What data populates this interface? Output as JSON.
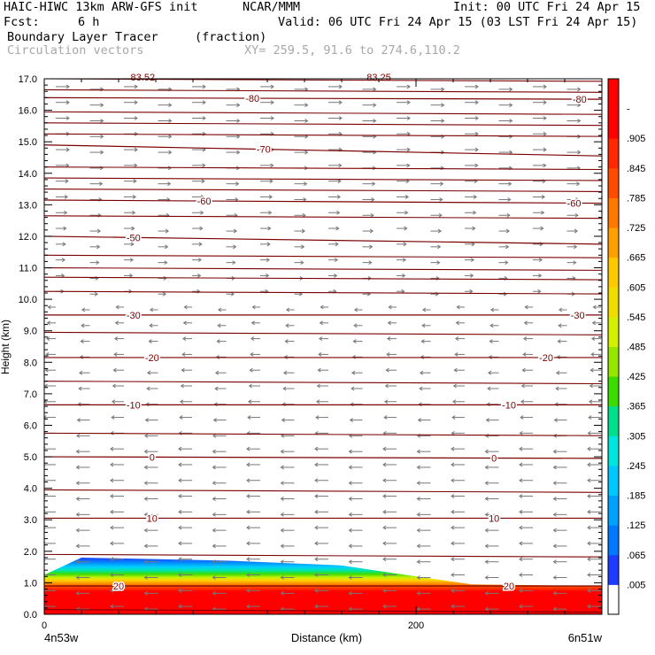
{
  "header": {
    "model": "HAIC-HIWC 13km ARW-GFS init",
    "org": "NCAR/MMM",
    "init": "Init: 00 UTC Fri 24 Apr 15",
    "fcst_label": "Fcst:",
    "fcst_value": "6 h",
    "valid": "Valid: 06 UTC Fri 24 Apr 15 (03 LST Fri 24 Apr 15)",
    "field": "Boundary Layer Tracer",
    "field_units": "(fraction)",
    "vectors": "Circulation vectors",
    "xy": "XY= 259.5, 91.6 to 274.6,110.2"
  },
  "chart_data": {
    "type": "heatmap",
    "xlabel": "Distance (km)",
    "ylabel": "Height (km)",
    "xlim": [
      0,
      300
    ],
    "ylim": [
      0,
      17
    ],
    "x_ticks": [
      {
        "value": 0,
        "label": "0"
      },
      {
        "value": 200,
        "label": "200"
      }
    ],
    "x_end_labels": [
      "4n53w",
      "6n51w"
    ],
    "y_ticks": [
      "0.0",
      "1.0",
      "2.0",
      "3.0",
      "4.0",
      "5.0",
      "6.0",
      "7.0",
      "8.0",
      "9.0",
      "10.0",
      "11.0",
      "12.0",
      "13.0",
      "14.0",
      "15.0",
      "16.0",
      "17.0"
    ],
    "colorbar": {
      "labels": [
        ".005",
        ".065",
        ".125",
        ".185",
        ".245",
        ".305",
        ".365",
        ".425",
        ".485",
        ".545",
        ".605",
        ".665",
        ".725",
        ".785",
        ".845",
        ".905",
        "-"
      ],
      "colors": [
        "#ffffff",
        "#1e3cff",
        "#0078ff",
        "#00a0ff",
        "#00c8ff",
        "#00e6dc",
        "#00e08c",
        "#3cdc00",
        "#96e600",
        "#d2f000",
        "#f0dc00",
        "#ffc800",
        "#ffa000",
        "#ff7800",
        "#ff4b00",
        "#ff2800",
        "#ff0000",
        "#ff0000"
      ]
    },
    "tracer_layer": {
      "x_km": [
        0,
        20,
        100,
        160,
        200,
        230,
        300
      ],
      "top_km": [
        1.25,
        1.8,
        1.7,
        1.55,
        1.2,
        0.95,
        0.9
      ]
    },
    "isotherms": {
      "units": "deg C",
      "lines": [
        {
          "value": -80,
          "y0": 16.4,
          "y1": 16.35,
          "labels": [
            {
              "x": 112,
              "text": "-80"
            },
            {
              "x": 288,
              "text": "-80"
            }
          ]
        },
        {
          "value": -70,
          "y0": 14.9,
          "y1": 14.55,
          "labels": [
            {
              "x": 118,
              "text": "-70"
            }
          ]
        },
        {
          "value": -60,
          "y0": 13.15,
          "y1": 13.05,
          "labels": [
            {
              "x": 86,
              "text": "-60"
            },
            {
              "x": 285,
              "text": "-60"
            }
          ]
        },
        {
          "value": -50,
          "y0": 12.0,
          "y1": 11.75,
          "labels": [
            {
              "x": 48,
              "text": "-50"
            }
          ]
        },
        {
          "value": -30,
          "y0": 9.5,
          "y1": 9.5,
          "labels": [
            {
              "x": 48,
              "text": "-30"
            },
            {
              "x": 287,
              "text": "-30"
            }
          ]
        },
        {
          "value": -20,
          "y0": 8.15,
          "y1": 8.15,
          "labels": [
            {
              "x": 58,
              "text": "-20"
            },
            {
              "x": 270,
              "text": "-20"
            }
          ]
        },
        {
          "value": -10,
          "y0": 6.65,
          "y1": 6.65,
          "labels": [
            {
              "x": 48,
              "text": "-10"
            },
            {
              "x": 250,
              "text": "-10"
            }
          ]
        },
        {
          "value": 0,
          "y0": 5.0,
          "y1": 4.95,
          "labels": [
            {
              "x": 58,
              "text": "0"
            },
            {
              "x": 242,
              "text": "0"
            }
          ]
        },
        {
          "value": 10,
          "y0": 3.05,
          "y1": 3.05,
          "labels": [
            {
              "x": 58,
              "text": "10"
            },
            {
              "x": 242,
              "text": "10"
            }
          ]
        },
        {
          "value": 20,
          "y0": 0.9,
          "y1": 0.9,
          "labels": [
            {
              "x": 40,
              "text": "20"
            },
            {
              "x": 250,
              "text": "20"
            }
          ]
        }
      ],
      "extra_lines_y": [
        17.0,
        16.65,
        15.95,
        15.6,
        15.25,
        14.2,
        13.85,
        13.5,
        12.65,
        11.4,
        11.0,
        10.7,
        10.25,
        8.95,
        7.4,
        5.75,
        3.95,
        1.9,
        0.15
      ],
      "top_partial_labels": [
        {
          "x": 53,
          "text": "83.52"
        },
        {
          "x": 180,
          "text": "83.25"
        }
      ]
    },
    "circulation_vectors": {
      "upper_direction": "east",
      "lower_direction": "west",
      "reversal_height_km": 10.0
    }
  }
}
